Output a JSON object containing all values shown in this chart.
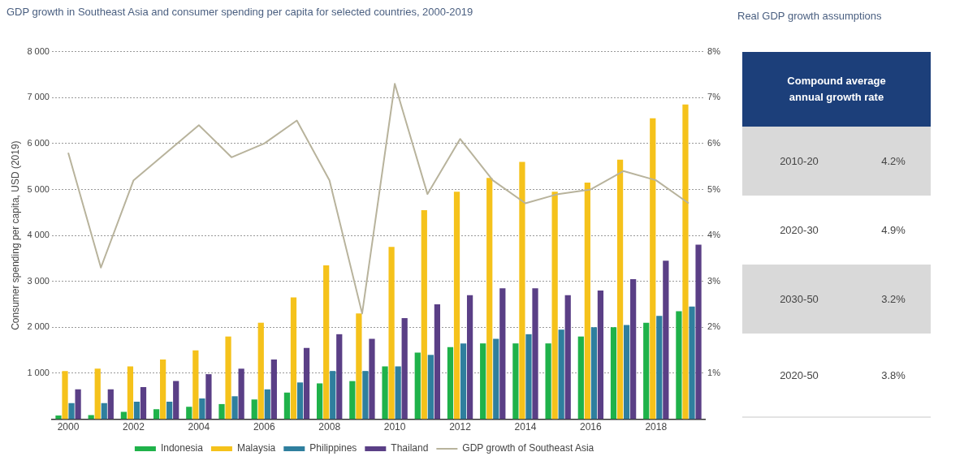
{
  "chart_data": [
    {
      "type": "bar",
      "title": "GDP growth in Southeast Asia and consumer spending per capita for selected countries, 2000-2019",
      "ylabel": "Consumer spending per capita, USD (2019)",
      "categories": [
        "2000",
        null,
        "2002",
        null,
        "2004",
        null,
        "2006",
        null,
        "2008",
        null,
        "2010",
        null,
        "2012",
        null,
        "2014",
        null,
        "2016",
        null,
        "2018",
        null
      ],
      "series": [
        {
          "name": "Indonesia",
          "color": "#1fb24a",
          "values": [
            80,
            90,
            160,
            220,
            270,
            330,
            430,
            580,
            780,
            830,
            1150,
            1450,
            1570,
            1650,
            1650,
            1650,
            1800,
            2000,
            2100,
            2350
          ]
        },
        {
          "name": "Malaysia",
          "color": "#f5c21b",
          "values": [
            1050,
            1100,
            1150,
            1300,
            1500,
            1800,
            2100,
            2650,
            3350,
            2300,
            3750,
            4550,
            4950,
            5250,
            5600,
            4950,
            5150,
            5650,
            6550,
            6850
          ]
        },
        {
          "name": "Philippines",
          "color": "#2f7f9e",
          "values": [
            350,
            350,
            380,
            380,
            450,
            500,
            650,
            800,
            1050,
            1050,
            1150,
            1400,
            1650,
            1750,
            1850,
            1950,
            2000,
            2050,
            2250,
            2450
          ]
        },
        {
          "name": "Thailand",
          "color": "#5a3f86",
          "values": [
            650,
            650,
            700,
            830,
            980,
            1100,
            1300,
            1550,
            1850,
            1750,
            2200,
            2500,
            2700,
            2850,
            2850,
            2700,
            2800,
            3050,
            3450,
            3800
          ]
        },
        {
          "name": "GDP growth of Southeast Asia",
          "type": "line",
          "axis": "y2",
          "color": "#b8b39c",
          "values": [
            5.8,
            3.3,
            5.2,
            5.8,
            6.4,
            5.7,
            6.0,
            6.5,
            5.2,
            2.3,
            7.3,
            4.9,
            6.1,
            5.2,
            4.7,
            4.9,
            5.0,
            5.4,
            5.2,
            4.7
          ]
        }
      ],
      "ylim": [
        0,
        8000
      ],
      "yticks": [
        {
          "value": 1000,
          "label": "1 000"
        },
        {
          "value": 2000,
          "label": "2 000"
        },
        {
          "value": 3000,
          "label": "3 000"
        },
        {
          "value": 4000,
          "label": "4 000"
        },
        {
          "value": 5000,
          "label": "5 000"
        },
        {
          "value": 6000,
          "label": "6 000"
        },
        {
          "value": 7000,
          "label": "7 000"
        },
        {
          "value": 8000,
          "label": "8 000"
        }
      ],
      "y2lim": [
        0,
        8
      ],
      "y2ticks": [
        {
          "value": 1,
          "label": "1%"
        },
        {
          "value": 2,
          "label": "2%"
        },
        {
          "value": 3,
          "label": "3%"
        },
        {
          "value": 4,
          "label": "4%"
        },
        {
          "value": 5,
          "label": "5%"
        },
        {
          "value": 6,
          "label": "6%"
        },
        {
          "value": 7,
          "label": "7%"
        },
        {
          "value": 8,
          "label": "8%"
        }
      ],
      "grid": "y",
      "legend": "bottom",
      "line_style": "solid",
      "marker": "none"
    },
    {
      "type": "other",
      "title": "Real GDP growth assumptions",
      "subtitle": "Compound average annual growth rate",
      "categories": [
        "2010-20",
        "2020-30",
        "2030-50",
        "2020-50"
      ],
      "value_labels": [
        "4.2%",
        "4.9%",
        "3.2%",
        "3.8%"
      ]
    }
  ]
}
